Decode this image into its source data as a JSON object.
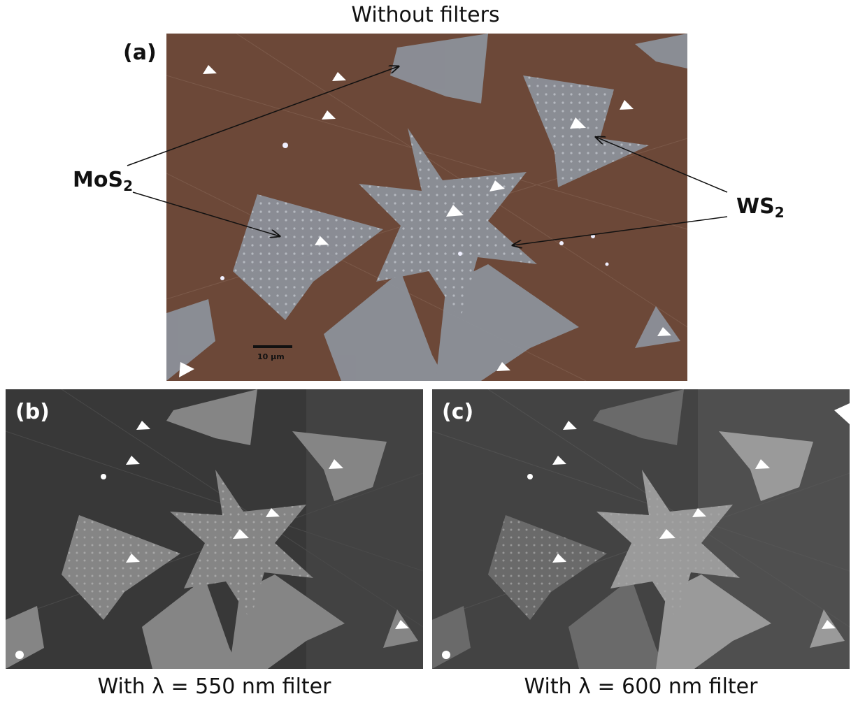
{
  "figure": {
    "top_caption": "Without filters",
    "panel_a": {
      "label": "(a)",
      "scale_bar": "10 μm"
    },
    "panel_b": {
      "label": "(b)",
      "caption": "With λ = 550 nm filter"
    },
    "panel_c": {
      "label": "(c)",
      "caption": "With λ = 600 nm filter"
    },
    "annotations": {
      "mos2": {
        "base": "MoS",
        "sub": "2"
      },
      "ws2": {
        "base": "WS",
        "sub": "2"
      }
    }
  },
  "colors": {
    "substrate_color": "#6e4a3a",
    "flake_color": "#8f96a0",
    "gray_background": "#3c3c3c",
    "gray_flake": "#8a8a8a"
  }
}
